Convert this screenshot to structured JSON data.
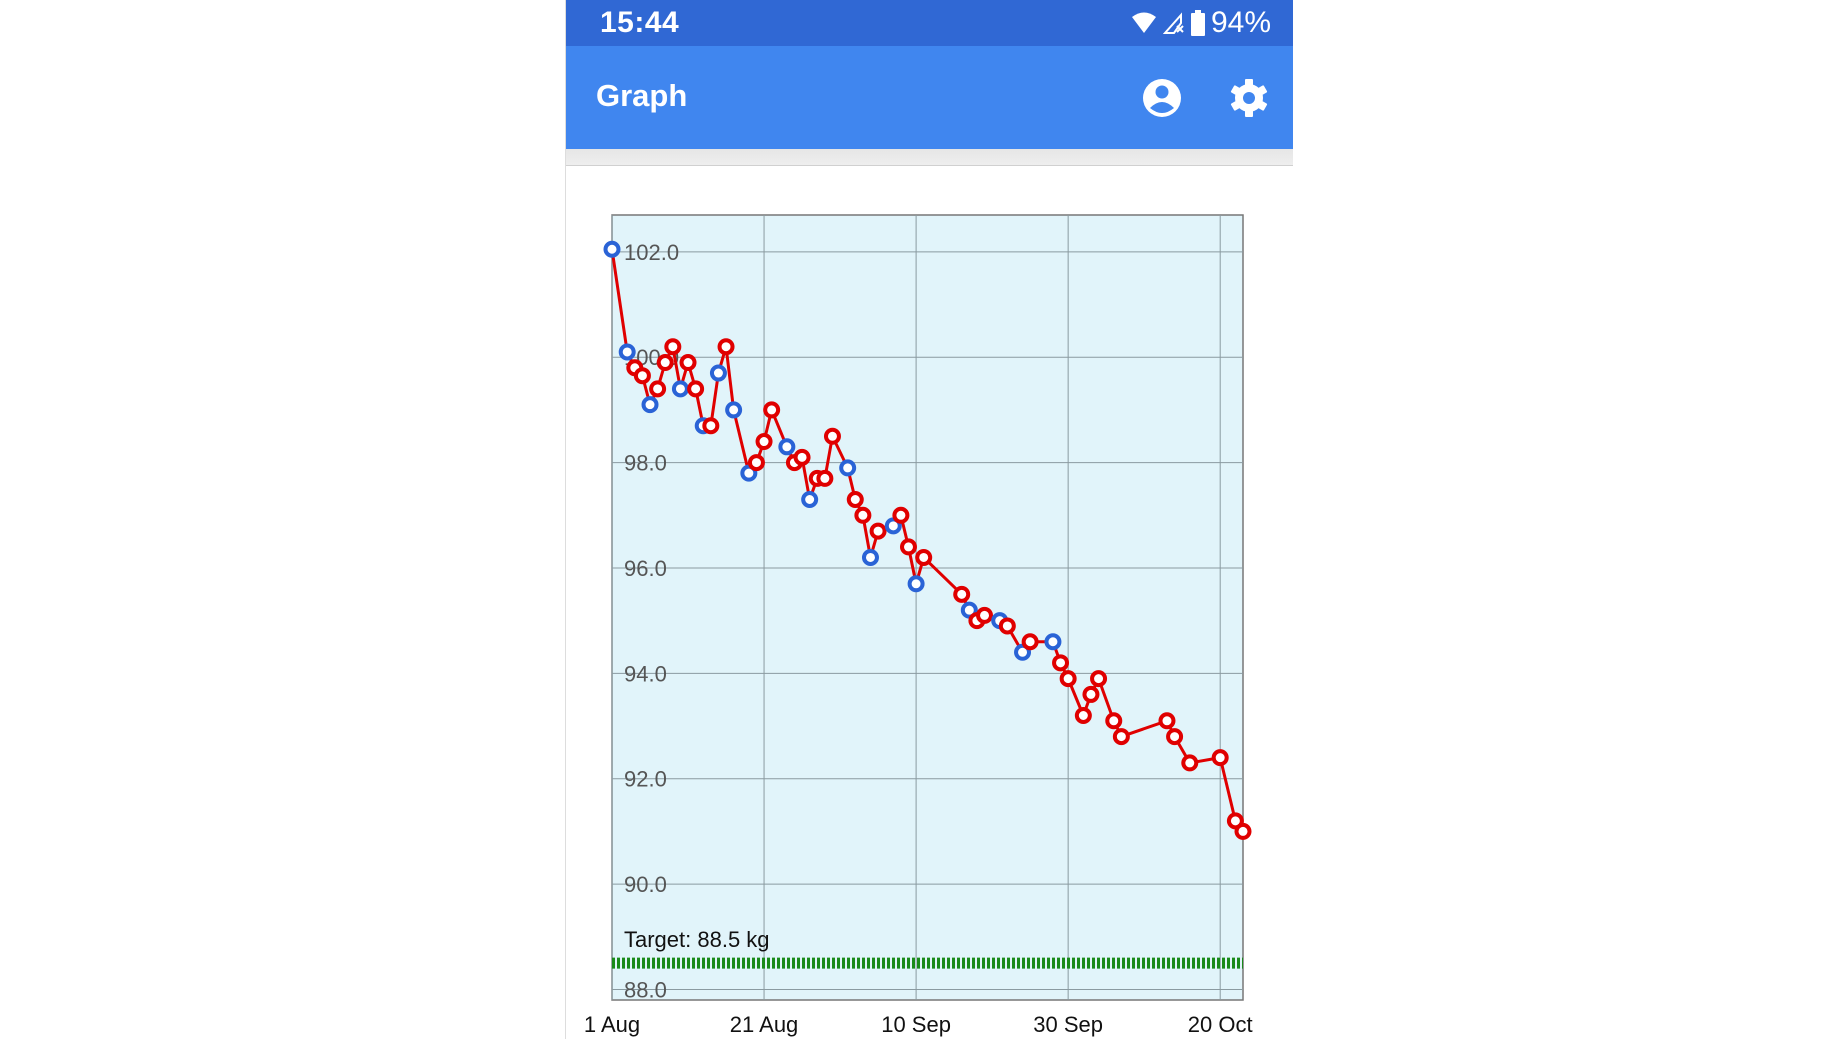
{
  "status_bar": {
    "time": "15:44",
    "battery": "94%",
    "icons": [
      "wifi-icon",
      "no-signal-icon",
      "battery-icon"
    ]
  },
  "app_bar": {
    "title": "Graph",
    "actions": [
      "account-icon",
      "settings-icon"
    ]
  },
  "colors": {
    "status_bar": "#3068d4",
    "app_bar": "#4086ef",
    "line": "#e00000",
    "marker_red": "#e00000",
    "marker_blue": "#2a63d6",
    "plot_bg": "#e1f4fa",
    "target": "#1a8a1a"
  },
  "chart_data": {
    "type": "line",
    "xlim": [
      "1 Aug",
      "23 Oct"
    ],
    "ylim": [
      87.8,
      102.7
    ],
    "grid": true,
    "x_ticks": [
      "1 Aug",
      "21 Aug",
      "10 Sep",
      "30 Sep",
      "20 Oct"
    ],
    "y_ticks": [
      "88.0",
      "90.0",
      "92.0",
      "94.0",
      "96.0",
      "98.0",
      "100.0",
      "102.0"
    ],
    "target": {
      "value": 88.5,
      "label": "Target: 88.5 kg"
    },
    "points": [
      [
        "1 Aug",
        102.05,
        "blue"
      ],
      [
        "3 Aug",
        100.1,
        "blue"
      ],
      [
        "4 Aug",
        99.8,
        "red"
      ],
      [
        "5 Aug",
        99.65,
        "red"
      ],
      [
        "6 Aug",
        99.1,
        "blue"
      ],
      [
        "7 Aug",
        99.4,
        "red"
      ],
      [
        "8 Aug",
        99.9,
        "red"
      ],
      [
        "9 Aug",
        100.2,
        "red"
      ],
      [
        "10 Aug",
        99.4,
        "blue"
      ],
      [
        "11 Aug",
        99.9,
        "red"
      ],
      [
        "12 Aug",
        99.4,
        "red"
      ],
      [
        "13 Aug",
        98.7,
        "blue"
      ],
      [
        "14 Aug",
        98.7,
        "red"
      ],
      [
        "15 Aug",
        99.7,
        "blue"
      ],
      [
        "16 Aug",
        100.2,
        "red"
      ],
      [
        "17 Aug",
        99.0,
        "blue"
      ],
      [
        "19 Aug",
        97.8,
        "blue"
      ],
      [
        "20 Aug",
        98.0,
        "red"
      ],
      [
        "21 Aug",
        98.4,
        "red"
      ],
      [
        "22 Aug",
        99.0,
        "red"
      ],
      [
        "24 Aug",
        98.3,
        "blue"
      ],
      [
        "25 Aug",
        98.0,
        "red"
      ],
      [
        "26 Aug",
        98.1,
        "red"
      ],
      [
        "27 Aug",
        97.3,
        "blue"
      ],
      [
        "28 Aug",
        97.7,
        "red"
      ],
      [
        "29 Aug",
        97.7,
        "red"
      ],
      [
        "30 Aug",
        98.5,
        "red"
      ],
      [
        "1 Sep",
        97.9,
        "blue"
      ],
      [
        "2 Sep",
        97.3,
        "red"
      ],
      [
        "3 Sep",
        97.0,
        "red"
      ],
      [
        "4 Sep",
        96.2,
        "blue"
      ],
      [
        "5 Sep",
        96.7,
        "red"
      ],
      [
        "7 Sep",
        96.8,
        "blue"
      ],
      [
        "8 Sep",
        97.0,
        "red"
      ],
      [
        "9 Sep",
        96.4,
        "red"
      ],
      [
        "10 Sep",
        95.7,
        "blue"
      ],
      [
        "11 Sep",
        96.2,
        "red"
      ],
      [
        "16 Sep",
        95.5,
        "red"
      ],
      [
        "17 Sep",
        95.2,
        "blue"
      ],
      [
        "18 Sep",
        95.0,
        "red"
      ],
      [
        "19 Sep",
        95.1,
        "red"
      ],
      [
        "21 Sep",
        95.0,
        "blue"
      ],
      [
        "22 Sep",
        94.9,
        "red"
      ],
      [
        "24 Sep",
        94.4,
        "blue"
      ],
      [
        "25 Sep",
        94.6,
        "red"
      ],
      [
        "28 Sep",
        94.6,
        "blue"
      ],
      [
        "29 Sep",
        94.2,
        "red"
      ],
      [
        "30 Sep",
        93.9,
        "red"
      ],
      [
        "2 Oct",
        93.2,
        "red"
      ],
      [
        "3 Oct",
        93.6,
        "red"
      ],
      [
        "4 Oct",
        93.9,
        "red"
      ],
      [
        "6 Oct",
        93.1,
        "red"
      ],
      [
        "7 Oct",
        92.8,
        "red"
      ],
      [
        "13 Oct",
        93.1,
        "red"
      ],
      [
        "14 Oct",
        92.8,
        "red"
      ],
      [
        "16 Oct",
        92.3,
        "red"
      ],
      [
        "20 Oct",
        92.4,
        "red"
      ],
      [
        "22 Oct",
        91.2,
        "red"
      ],
      [
        "23 Oct",
        91.0,
        "red"
      ]
    ]
  }
}
